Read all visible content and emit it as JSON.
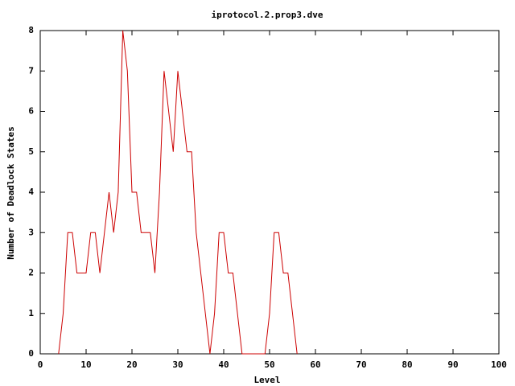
{
  "chart_data": {
    "type": "line",
    "title": "iprotocol.2.prop3.dve",
    "x_label": "Level",
    "y_label": "Number of Deadlock States",
    "x": [
      4,
      5,
      6,
      7,
      8,
      9,
      10,
      11,
      12,
      13,
      14,
      15,
      16,
      17,
      18,
      19,
      20,
      21,
      22,
      23,
      24,
      25,
      26,
      27,
      28,
      29,
      30,
      31,
      32,
      33,
      34,
      35,
      36,
      37,
      38,
      39,
      40,
      41,
      42,
      43,
      44,
      45,
      46,
      47,
      48,
      49,
      50,
      51,
      52,
      53,
      54,
      55,
      56
    ],
    "series": [
      {
        "color": "#cc0000",
        "values": [
          0,
          1,
          3,
          3,
          2,
          2,
          2,
          3,
          3,
          2,
          3,
          4,
          3,
          4,
          8,
          7,
          4,
          4,
          3,
          3,
          3,
          2,
          4,
          7,
          6,
          5,
          7,
          6,
          5,
          5,
          3,
          2,
          1,
          0,
          1,
          3,
          3,
          2,
          2,
          1,
          0,
          0,
          0,
          0,
          0,
          0,
          1,
          3,
          3,
          2,
          2,
          1,
          0
        ]
      }
    ],
    "xlim": [
      0,
      100
    ],
    "xticks": [
      0,
      10,
      20,
      30,
      40,
      50,
      60,
      70,
      80,
      90,
      100
    ],
    "ylim": [
      0,
      8
    ],
    "yticks": [
      0,
      1,
      2,
      3,
      4,
      5,
      6,
      7,
      8
    ]
  }
}
